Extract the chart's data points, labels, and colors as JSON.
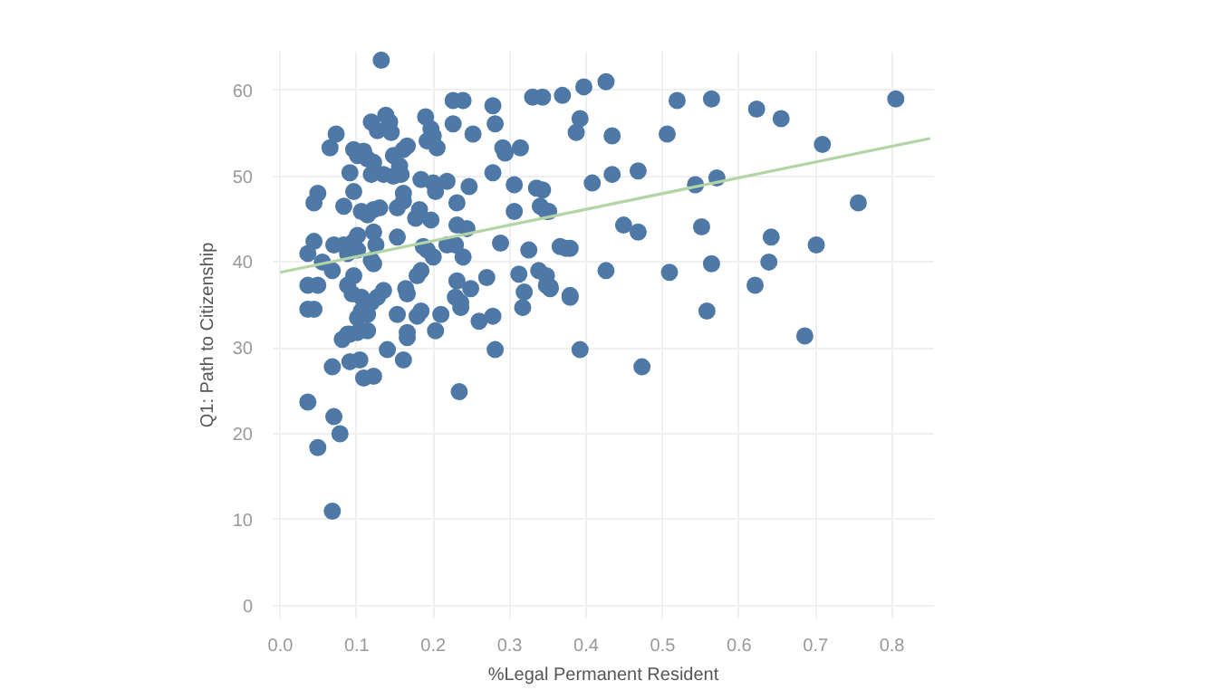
{
  "chart_data": {
    "type": "scatter",
    "xlabel": "%Legal Permanent Resident",
    "ylabel": "Q1: Path to Citizenship",
    "xlim": [
      -0.01,
      0.855
    ],
    "ylim": [
      -1.5,
      64.5
    ],
    "xticks": [
      {
        "value": 0,
        "label": "0.0"
      },
      {
        "value": 0.1,
        "label": "0.1"
      },
      {
        "value": 0.2,
        "label": "0.2"
      },
      {
        "value": 0.3,
        "label": "0.3"
      },
      {
        "value": 0.4,
        "label": "0.4"
      },
      {
        "value": 0.5,
        "label": "0.5"
      },
      {
        "value": 0.6,
        "label": "0.6"
      },
      {
        "value": 0.7,
        "label": "0.7"
      },
      {
        "value": 0.8,
        "label": "0.8"
      }
    ],
    "yticks": [
      0,
      10,
      20,
      30,
      40,
      50,
      60
    ],
    "grid": true,
    "series": [
      {
        "marker": "circle",
        "color": "#4e79a7",
        "x": [
          0.132,
          0.226,
          0.239,
          0.278,
          0.33,
          0.343,
          0.369,
          0.397,
          0.426,
          0.392,
          0.387,
          0.434,
          0.519,
          0.564,
          0.623,
          0.655,
          0.805,
          0.506,
          0.709,
          0.119,
          0.138,
          0.143,
          0.127,
          0.145,
          0.19,
          0.197,
          0.2,
          0.192,
          0.226,
          0.252,
          0.281,
          0.073,
          0.065,
          0.096,
          0.109,
          0.101,
          0.114,
          0.122,
          0.166,
          0.161,
          0.148,
          0.205,
          0.291,
          0.294,
          0.314,
          0.091,
          0.119,
          0.135,
          0.148,
          0.158,
          0.156,
          0.184,
          0.2,
          0.218,
          0.278,
          0.306,
          0.335,
          0.343,
          0.408,
          0.434,
          0.468,
          0.543,
          0.571,
          0.756,
          0.049,
          0.044,
          0.096,
          0.161,
          0.161,
          0.203,
          0.247,
          0.231,
          0.083,
          0.106,
          0.114,
          0.122,
          0.13,
          0.153,
          0.182,
          0.177,
          0.197,
          0.231,
          0.244,
          0.306,
          0.34,
          0.348,
          0.351,
          0.449,
          0.468,
          0.551,
          0.122,
          0.101,
          0.096,
          0.044,
          0.07,
          0.083,
          0.125,
          0.153,
          0.187,
          0.192,
          0.218,
          0.229,
          0.288,
          0.325,
          0.366,
          0.379,
          0.036,
          0.088,
          0.101,
          0.055,
          0.068,
          0.119,
          0.122,
          0.184,
          0.179,
          0.2,
          0.239,
          0.096,
          0.088,
          0.094,
          0.106,
          0.119,
          0.127,
          0.135,
          0.036,
          0.049,
          0.164,
          0.166,
          0.231,
          0.229,
          0.236,
          0.249,
          0.27,
          0.312,
          0.338,
          0.348,
          0.353,
          0.319,
          0.379,
          0.036,
          0.044,
          0.106,
          0.114,
          0.101,
          0.153,
          0.184,
          0.179,
          0.21,
          0.236,
          0.278,
          0.26,
          0.317,
          0.088,
          0.101,
          0.114,
          0.166,
          0.203,
          0.081,
          0.091,
          0.166,
          0.14,
          0.281,
          0.392,
          0.068,
          0.091,
          0.104,
          0.161,
          0.109,
          0.122,
          0.036,
          0.234,
          0.07,
          0.078,
          0.049,
          0.068,
          0.642,
          0.701,
          0.426,
          0.509,
          0.564,
          0.639,
          0.621,
          0.558,
          0.686,
          0.473,
          0.348,
          0.353,
          0.379,
          0.374
        ],
        "values": [
          63.5,
          58.8,
          58.8,
          58.2,
          59.2,
          59.2,
          59.4,
          60.4,
          61,
          56.7,
          55.1,
          54.7,
          58.8,
          59,
          57.8,
          56.7,
          59,
          54.9,
          53.7,
          56.3,
          57.1,
          56.3,
          55.3,
          55.1,
          56.9,
          55.5,
          54.7,
          54.1,
          56.1,
          54.9,
          56.1,
          54.9,
          53.3,
          53.1,
          52.9,
          52.4,
          52,
          51.6,
          53.5,
          53.1,
          52.4,
          53.3,
          53.3,
          52.7,
          53.3,
          50.4,
          50.2,
          50.2,
          50,
          50.2,
          51.2,
          49.6,
          49.2,
          49.4,
          50.4,
          49,
          48.6,
          48.4,
          49.2,
          50.2,
          50.6,
          49,
          49.8,
          46.9,
          48,
          46.9,
          48.2,
          48,
          47.1,
          48.2,
          48.8,
          46.9,
          46.5,
          45.9,
          45.5,
          46.1,
          46.3,
          46.3,
          46.1,
          45.1,
          44.9,
          44.3,
          43.9,
          45.9,
          46.5,
          45.9,
          45.9,
          44.3,
          43.5,
          44.1,
          43.5,
          43.1,
          42.4,
          42.4,
          42,
          42,
          42,
          42.9,
          41.8,
          41.4,
          42,
          42,
          42.2,
          41.4,
          41.8,
          41.6,
          41,
          41,
          41.4,
          40,
          39,
          40.2,
          39.8,
          39,
          38.4,
          40.6,
          40.6,
          38.4,
          37.3,
          36.3,
          35.9,
          35.3,
          35.9,
          36.7,
          37.3,
          37.3,
          36.9,
          36.3,
          37.8,
          35.9,
          35.3,
          36.9,
          38.2,
          38.6,
          39,
          37.3,
          36.9,
          36.5,
          36.1,
          34.5,
          34.5,
          34.3,
          33.9,
          33.5,
          33.9,
          34.3,
          33.7,
          33.9,
          34.7,
          33.7,
          33.1,
          34.7,
          31.6,
          31.8,
          32,
          31.8,
          32,
          31,
          31.6,
          31.2,
          29.8,
          29.8,
          29.8,
          27.8,
          28.4,
          28.6,
          28.6,
          26.5,
          26.7,
          23.7,
          24.9,
          22,
          20,
          18.4,
          11,
          42.9,
          42,
          39,
          38.8,
          39.8,
          40,
          37.3,
          34.3,
          31.4,
          27.8,
          38.4,
          37.1,
          35.9,
          41.6
        ]
      },
      {
        "type": "line",
        "color": "#b3d4a5",
        "x": [
          0,
          0.85
        ],
        "values": [
          38.8,
          54.4
        ]
      }
    ]
  }
}
